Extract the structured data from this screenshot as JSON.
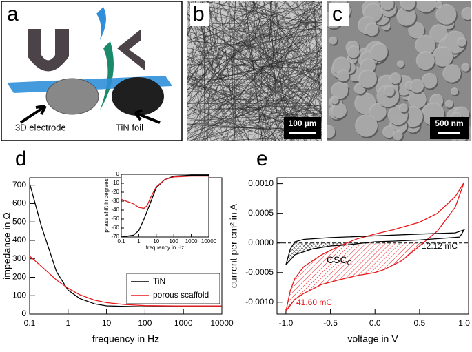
{
  "panels": {
    "a": {
      "label": "a",
      "electrode": "3D electrode",
      "foil": "TiN foil"
    },
    "b": {
      "label": "b",
      "scale": "100 µm"
    },
    "c": {
      "label": "c",
      "scale": "500 nm"
    }
  },
  "chart_data": [
    {
      "panel": "d",
      "type": "line",
      "xscale": "log",
      "xlabel": "frequency  in Hz",
      "ylabel": "impedance  in Ω",
      "xlim": [
        0.1,
        10000
      ],
      "xticks": [
        0.1,
        1,
        10,
        100,
        1000,
        10000
      ],
      "ylim": [
        0,
        740
      ],
      "yticks": [
        0,
        100,
        200,
        300,
        400,
        500,
        600,
        700
      ],
      "legend": "lower right",
      "series": [
        {
          "name": "TiN",
          "color": "#000000",
          "x": [
            0.1,
            0.2,
            0.5,
            1,
            2,
            5,
            10,
            30,
            100,
            1000,
            10000
          ],
          "values": [
            710,
            480,
            230,
            130,
            85,
            55,
            45,
            42,
            40,
            40,
            40
          ]
        },
        {
          "name": "porous scaffold",
          "color": "#e8191c",
          "x": [
            0.1,
            0.2,
            0.5,
            1,
            2,
            5,
            10,
            30,
            100,
            1000,
            10000
          ],
          "values": [
            315,
            260,
            185,
            140,
            105,
            75,
            62,
            52,
            46,
            44,
            44
          ]
        }
      ]
    },
    {
      "type": "line",
      "xscale": "log",
      "xlabel": "frequency  in Hz",
      "ylabel": "phase shift in degrees",
      "xlim": [
        0.1,
        10000
      ],
      "xticks": [
        0.1,
        1,
        10,
        100,
        1000,
        10000
      ],
      "ylim": [
        -70,
        0
      ],
      "yticks": [
        -70,
        -60,
        -50,
        -40,
        -30,
        -20,
        -10,
        0
      ],
      "series": [
        {
          "color": "#000000",
          "x": [
            0.1,
            0.5,
            1,
            2,
            5,
            10,
            30,
            100,
            1000,
            10000
          ],
          "values": [
            -70,
            -68,
            -63,
            -50,
            -30,
            -15,
            -6,
            -2,
            -1,
            -1
          ]
        },
        {
          "color": "#e8191c",
          "x": [
            0.1,
            0.5,
            1,
            2,
            3,
            5,
            10,
            30,
            100,
            1000,
            10000
          ],
          "values": [
            -28,
            -33,
            -37,
            -38,
            -35,
            -25,
            -14,
            -6,
            -3,
            -2,
            -2
          ]
        }
      ]
    },
    {
      "panel": "e",
      "type": "loop",
      "xlabel": "voltage  in V",
      "ylabel": "current per cm² in A",
      "xlim": [
        -1.1,
        1.05
      ],
      "xticks": [
        {
          "value": -1,
          "label": "-1.0"
        },
        {
          "value": -0.5,
          "label": "-0.5"
        },
        {
          "value": 0,
          "label": "0.0"
        },
        {
          "value": 0.5,
          "label": "0.5"
        },
        {
          "value": 1,
          "label": "1.0"
        }
      ],
      "ylim": [
        -0.0012,
        0.0011
      ],
      "yticks": [
        {
          "value": -0.001,
          "label": "-0.0010"
        },
        {
          "value": -0.0005,
          "label": "-0.0005"
        },
        {
          "value": 0,
          "label": "0.0000"
        },
        {
          "value": 0.0005,
          "label": "0.0005"
        },
        {
          "value": 0.001,
          "label": "0.0010"
        }
      ],
      "annotations": [
        "12.12 mC",
        "41.60 mC",
        "CSC",
        "C"
      ],
      "series": [
        {
          "color": "#e8191c",
          "x": [
            -1.0,
            -0.95,
            -0.9,
            -0.8,
            -0.6,
            -0.4,
            -0.2,
            0,
            0.2,
            0.5,
            0.7,
            0.9,
            1.0,
            0.9,
            0.7,
            0.5,
            0.3,
            0.1,
            0,
            -0.2,
            -0.4,
            -0.6,
            -0.8,
            -0.9,
            -1.0
          ],
          "values": [
            -0.00115,
            -0.0008,
            -0.0006,
            -0.0004,
            -0.0002,
            -5e-05,
            7e-05,
            0.00015,
            0.00022,
            0.00035,
            0.0005,
            0.00078,
            0.00102,
            0.0006,
            0.0002,
            -5e-05,
            -0.0003,
            -0.00045,
            -0.0005,
            -0.00055,
            -0.00062,
            -0.0007,
            -0.00085,
            -0.00095,
            -0.00115
          ]
        },
        {
          "color": "#000000",
          "x": [
            -1.0,
            -0.95,
            -0.9,
            -0.8,
            -0.5,
            0,
            0.5,
            0.9,
            1.0,
            0.95,
            0.5,
            0.2,
            0,
            -0.3,
            -0.5,
            -0.7,
            -0.9,
            -1.0
          ],
          "values": [
            -0.00037,
            -0.0001,
            2e-05,
            6e-05,
            9e-05,
            0.00012,
            0.00015,
            0.00017,
            0.00022,
            0.0001,
            5e-05,
            3e-05,
            2e-05,
            -3e-05,
            -5e-05,
            -0.0001,
            -0.0002,
            -0.00037
          ]
        }
      ]
    }
  ]
}
